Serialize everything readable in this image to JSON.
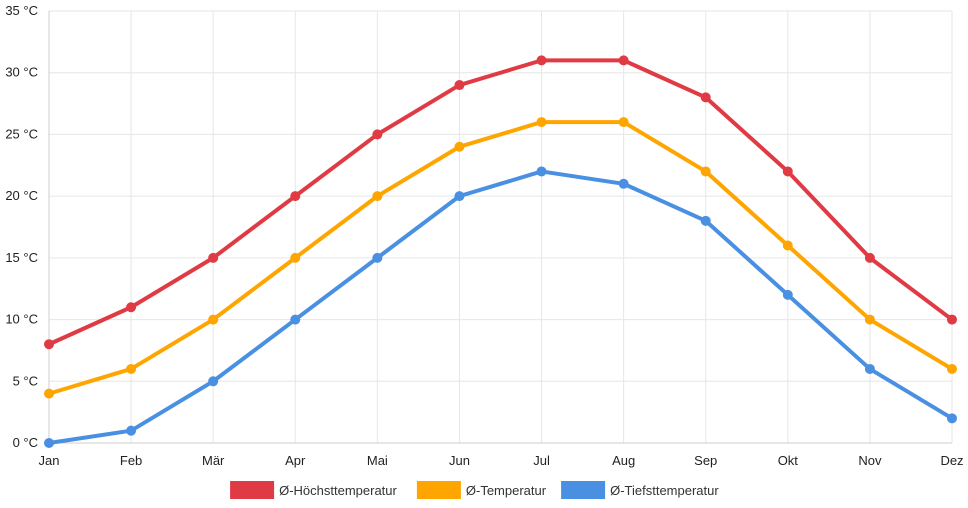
{
  "chart_data": {
    "type": "line",
    "categories": [
      "Jan",
      "Feb",
      "Mär",
      "Apr",
      "Mai",
      "Jun",
      "Jul",
      "Aug",
      "Sep",
      "Okt",
      "Nov",
      "Dez"
    ],
    "series": [
      {
        "name": "Ø-Höchsttemperatur",
        "color": "#e03a45",
        "values": [
          8,
          11,
          15,
          20,
          25,
          29,
          31,
          31,
          28,
          22,
          15,
          10
        ]
      },
      {
        "name": "Ø-Temperatur",
        "color": "#ffa500",
        "values": [
          4,
          6,
          10,
          15,
          20,
          24,
          26,
          26,
          22,
          16,
          10,
          6
        ]
      },
      {
        "name": "Ø-Tiefsttemperatur",
        "color": "#4a90e2",
        "values": [
          0,
          1,
          5,
          10,
          15,
          20,
          22,
          21,
          18,
          12,
          6,
          2
        ]
      }
    ],
    "ylim": [
      0,
      35
    ],
    "yticks": [
      0,
      5,
      10,
      15,
      20,
      25,
      30,
      35
    ],
    "ytick_unit": "°C",
    "grid": true,
    "legend_position": "bottom"
  }
}
